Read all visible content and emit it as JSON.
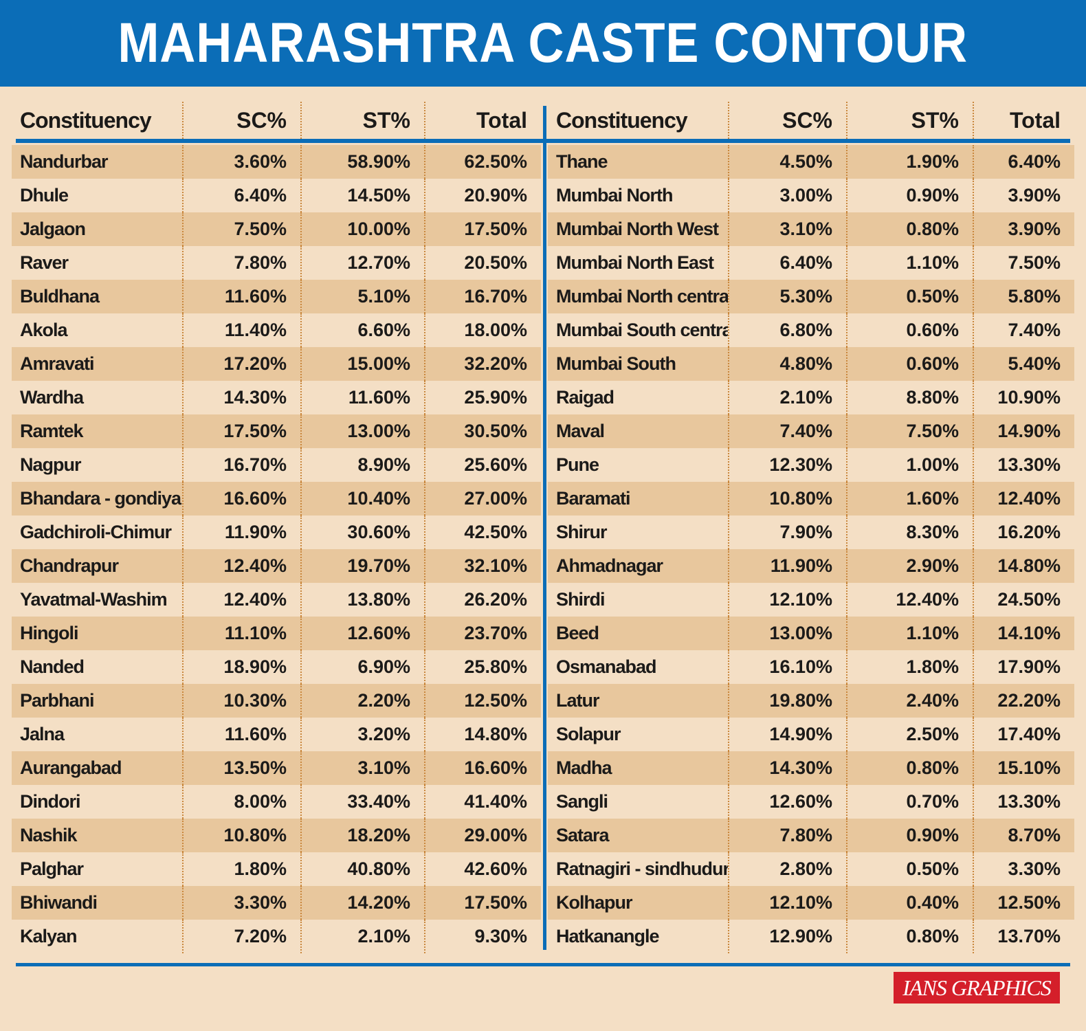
{
  "title": "MAHARASHTRA CASTE CONTOUR",
  "headers": [
    "Constituency",
    "SC%",
    "ST%",
    "Total"
  ],
  "left_rows": [
    [
      "Nandurbar",
      "3.60%",
      "58.90%",
      "62.50%"
    ],
    [
      "Dhule",
      "6.40%",
      "14.50%",
      "20.90%"
    ],
    [
      "Jalgaon",
      "7.50%",
      "10.00%",
      "17.50%"
    ],
    [
      "Raver",
      "7.80%",
      "12.70%",
      "20.50%"
    ],
    [
      "Buldhana",
      "11.60%",
      "5.10%",
      "16.70%"
    ],
    [
      "Akola",
      "11.40%",
      "6.60%",
      "18.00%"
    ],
    [
      "Amravati",
      "17.20%",
      "15.00%",
      "32.20%"
    ],
    [
      "Wardha",
      "14.30%",
      "11.60%",
      "25.90%"
    ],
    [
      "Ramtek",
      "17.50%",
      "13.00%",
      "30.50%"
    ],
    [
      "Nagpur",
      "16.70%",
      "8.90%",
      "25.60%"
    ],
    [
      "Bhandara - gondiya",
      "16.60%",
      "10.40%",
      "27.00%"
    ],
    [
      "Gadchiroli-Chimur",
      "11.90%",
      "30.60%",
      "42.50%"
    ],
    [
      "Chandrapur",
      "12.40%",
      "19.70%",
      "32.10%"
    ],
    [
      "Yavatmal-Washim",
      "12.40%",
      "13.80%",
      "26.20%"
    ],
    [
      "Hingoli",
      "11.10%",
      "12.60%",
      "23.70%"
    ],
    [
      "Nanded",
      "18.90%",
      "6.90%",
      "25.80%"
    ],
    [
      "Parbhani",
      "10.30%",
      "2.20%",
      "12.50%"
    ],
    [
      "Jalna",
      "11.60%",
      "3.20%",
      "14.80%"
    ],
    [
      "Aurangabad",
      "13.50%",
      "3.10%",
      "16.60%"
    ],
    [
      "Dindori",
      "8.00%",
      "33.40%",
      "41.40%"
    ],
    [
      "Nashik",
      "10.80%",
      "18.20%",
      "29.00%"
    ],
    [
      "Palghar",
      "1.80%",
      "40.80%",
      "42.60%"
    ],
    [
      "Bhiwandi",
      "3.30%",
      "14.20%",
      "17.50%"
    ],
    [
      "Kalyan",
      "7.20%",
      "2.10%",
      "9.30%"
    ]
  ],
  "right_rows": [
    [
      "Thane",
      "4.50%",
      "1.90%",
      "6.40%"
    ],
    [
      "Mumbai North",
      "3.00%",
      "0.90%",
      "3.90%"
    ],
    [
      "Mumbai North West",
      "3.10%",
      "0.80%",
      "3.90%"
    ],
    [
      "Mumbai North East",
      "6.40%",
      "1.10%",
      "7.50%"
    ],
    [
      "Mumbai North central",
      "5.30%",
      "0.50%",
      "5.80%"
    ],
    [
      "Mumbai South central",
      "6.80%",
      "0.60%",
      "7.40%"
    ],
    [
      "Mumbai South",
      "4.80%",
      "0.60%",
      "5.40%"
    ],
    [
      "Raigad",
      "2.10%",
      "8.80%",
      "10.90%"
    ],
    [
      "Maval",
      "7.40%",
      "7.50%",
      "14.90%"
    ],
    [
      "Pune",
      "12.30%",
      "1.00%",
      "13.30%"
    ],
    [
      "Baramati",
      "10.80%",
      "1.60%",
      "12.40%"
    ],
    [
      "Shirur",
      "7.90%",
      "8.30%",
      "16.20%"
    ],
    [
      "Ahmadnagar",
      "11.90%",
      "2.90%",
      "14.80%"
    ],
    [
      "Shirdi",
      "12.10%",
      "12.40%",
      "24.50%"
    ],
    [
      "Beed",
      "13.00%",
      "1.10%",
      "14.10%"
    ],
    [
      "Osmanabad",
      "16.10%",
      "1.80%",
      "17.90%"
    ],
    [
      "Latur",
      "19.80%",
      "2.40%",
      "22.20%"
    ],
    [
      "Solapur",
      "14.90%",
      "2.50%",
      "17.40%"
    ],
    [
      "Madha",
      "14.30%",
      "0.80%",
      "15.10%"
    ],
    [
      "Sangli",
      "12.60%",
      "0.70%",
      "13.30%"
    ],
    [
      "Satara",
      "7.80%",
      "0.90%",
      "8.70%"
    ],
    [
      "Ratnagiri - sindhudurg",
      "2.80%",
      "0.50%",
      "3.30%"
    ],
    [
      "Kolhapur",
      "12.10%",
      "0.40%",
      "12.50%"
    ],
    [
      "Hatkanangle",
      "12.90%",
      "0.80%",
      "13.70%"
    ]
  ],
  "credit": "IANS GRAPHICS",
  "colors": {
    "header_blue": "#0b6db7",
    "background": "#f4dfc5",
    "row_band": "#e8c79d",
    "divider_dots": "#c9873d",
    "credit_red": "#d41f2a"
  }
}
